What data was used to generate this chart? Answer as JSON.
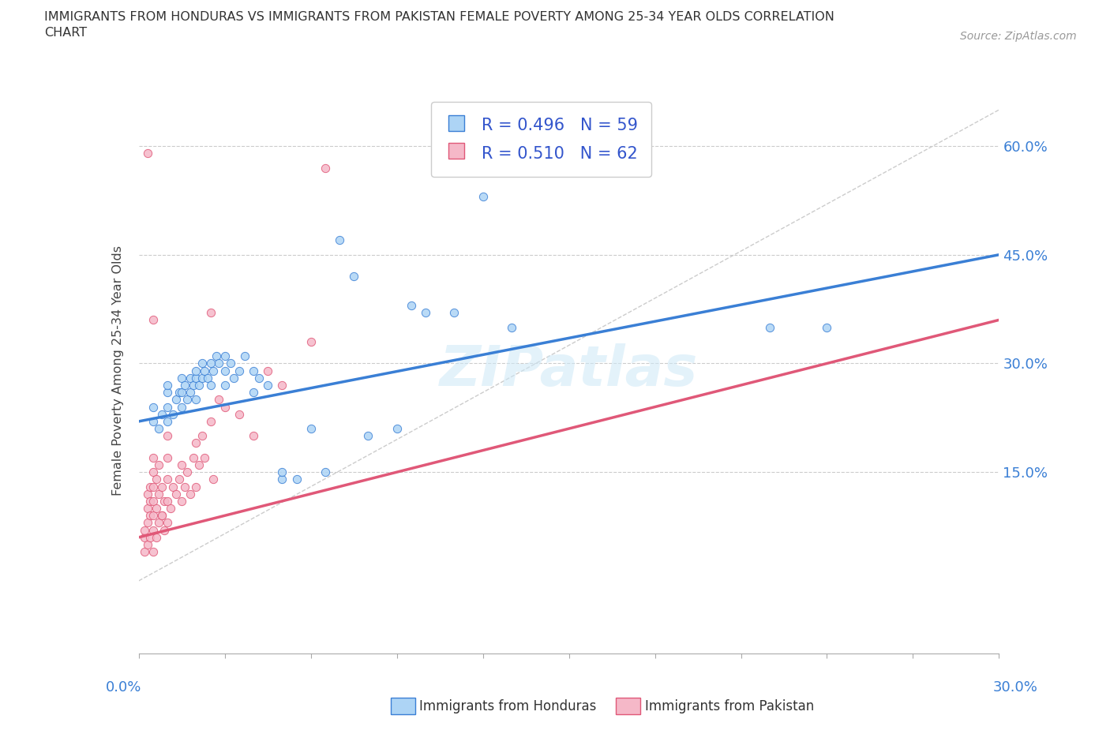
{
  "title_line1": "IMMIGRANTS FROM HONDURAS VS IMMIGRANTS FROM PAKISTAN FEMALE POVERTY AMONG 25-34 YEAR OLDS CORRELATION",
  "title_line2": "CHART",
  "source": "Source: ZipAtlas.com",
  "ylabel": "Female Poverty Among 25-34 Year Olds",
  "yticks": [
    0.15,
    0.3,
    0.45,
    0.6
  ],
  "ytick_labels": [
    "15.0%",
    "30.0%",
    "45.0%",
    "60.0%"
  ],
  "xmin": 0.0,
  "xmax": 0.3,
  "ymin": -0.1,
  "ymax": 0.68,
  "honduras_color": "#add4f5",
  "pakistan_color": "#f5b8c8",
  "honduras_line_color": "#3a7fd5",
  "pakistan_line_color": "#e05878",
  "R_honduras": 0.496,
  "N_honduras": 59,
  "R_pakistan": 0.51,
  "N_pakistan": 62,
  "legend_text_color": "#3355cc",
  "watermark": "ZIPatlas",
  "honduras_scatter": [
    [
      0.005,
      0.22
    ],
    [
      0.005,
      0.24
    ],
    [
      0.007,
      0.21
    ],
    [
      0.008,
      0.23
    ],
    [
      0.01,
      0.22
    ],
    [
      0.01,
      0.24
    ],
    [
      0.01,
      0.26
    ],
    [
      0.01,
      0.27
    ],
    [
      0.012,
      0.23
    ],
    [
      0.013,
      0.25
    ],
    [
      0.014,
      0.26
    ],
    [
      0.015,
      0.24
    ],
    [
      0.015,
      0.26
    ],
    [
      0.015,
      0.28
    ],
    [
      0.016,
      0.27
    ],
    [
      0.017,
      0.25
    ],
    [
      0.018,
      0.26
    ],
    [
      0.018,
      0.28
    ],
    [
      0.019,
      0.27
    ],
    [
      0.02,
      0.25
    ],
    [
      0.02,
      0.28
    ],
    [
      0.02,
      0.29
    ],
    [
      0.021,
      0.27
    ],
    [
      0.022,
      0.28
    ],
    [
      0.022,
      0.3
    ],
    [
      0.023,
      0.29
    ],
    [
      0.024,
      0.28
    ],
    [
      0.025,
      0.27
    ],
    [
      0.025,
      0.3
    ],
    [
      0.026,
      0.29
    ],
    [
      0.027,
      0.31
    ],
    [
      0.028,
      0.3
    ],
    [
      0.03,
      0.27
    ],
    [
      0.03,
      0.29
    ],
    [
      0.03,
      0.31
    ],
    [
      0.032,
      0.3
    ],
    [
      0.033,
      0.28
    ],
    [
      0.035,
      0.29
    ],
    [
      0.037,
      0.31
    ],
    [
      0.04,
      0.26
    ],
    [
      0.04,
      0.29
    ],
    [
      0.042,
      0.28
    ],
    [
      0.045,
      0.27
    ],
    [
      0.05,
      0.14
    ],
    [
      0.05,
      0.15
    ],
    [
      0.055,
      0.14
    ],
    [
      0.06,
      0.21
    ],
    [
      0.065,
      0.15
    ],
    [
      0.07,
      0.47
    ],
    [
      0.075,
      0.42
    ],
    [
      0.08,
      0.2
    ],
    [
      0.09,
      0.21
    ],
    [
      0.095,
      0.38
    ],
    [
      0.1,
      0.37
    ],
    [
      0.11,
      0.37
    ],
    [
      0.13,
      0.35
    ],
    [
      0.22,
      0.35
    ],
    [
      0.24,
      0.35
    ],
    [
      0.12,
      0.53
    ]
  ],
  "pakistan_scatter": [
    [
      0.002,
      0.04
    ],
    [
      0.002,
      0.06
    ],
    [
      0.002,
      0.07
    ],
    [
      0.003,
      0.05
    ],
    [
      0.003,
      0.08
    ],
    [
      0.003,
      0.1
    ],
    [
      0.003,
      0.12
    ],
    [
      0.004,
      0.06
    ],
    [
      0.004,
      0.09
    ],
    [
      0.004,
      0.11
    ],
    [
      0.004,
      0.13
    ],
    [
      0.005,
      0.04
    ],
    [
      0.005,
      0.07
    ],
    [
      0.005,
      0.09
    ],
    [
      0.005,
      0.11
    ],
    [
      0.005,
      0.13
    ],
    [
      0.005,
      0.15
    ],
    [
      0.005,
      0.17
    ],
    [
      0.005,
      0.36
    ],
    [
      0.006,
      0.06
    ],
    [
      0.006,
      0.1
    ],
    [
      0.006,
      0.14
    ],
    [
      0.007,
      0.08
    ],
    [
      0.007,
      0.12
    ],
    [
      0.007,
      0.16
    ],
    [
      0.008,
      0.09
    ],
    [
      0.008,
      0.13
    ],
    [
      0.009,
      0.07
    ],
    [
      0.009,
      0.11
    ],
    [
      0.01,
      0.08
    ],
    [
      0.01,
      0.11
    ],
    [
      0.01,
      0.14
    ],
    [
      0.01,
      0.17
    ],
    [
      0.01,
      0.2
    ],
    [
      0.011,
      0.1
    ],
    [
      0.012,
      0.13
    ],
    [
      0.013,
      0.12
    ],
    [
      0.014,
      0.14
    ],
    [
      0.015,
      0.11
    ],
    [
      0.015,
      0.16
    ],
    [
      0.016,
      0.13
    ],
    [
      0.017,
      0.15
    ],
    [
      0.018,
      0.12
    ],
    [
      0.019,
      0.17
    ],
    [
      0.02,
      0.13
    ],
    [
      0.02,
      0.19
    ],
    [
      0.021,
      0.16
    ],
    [
      0.022,
      0.2
    ],
    [
      0.023,
      0.17
    ],
    [
      0.025,
      0.22
    ],
    [
      0.026,
      0.14
    ],
    [
      0.028,
      0.25
    ],
    [
      0.03,
      0.24
    ],
    [
      0.035,
      0.23
    ],
    [
      0.04,
      0.2
    ],
    [
      0.045,
      0.29
    ],
    [
      0.05,
      0.27
    ],
    [
      0.06,
      0.33
    ],
    [
      0.065,
      0.57
    ],
    [
      0.003,
      0.59
    ],
    [
      0.025,
      0.37
    ],
    [
      0.008,
      0.09
    ]
  ],
  "ref_line": [
    [
      0.0,
      0.0
    ],
    [
      0.3,
      0.65
    ]
  ],
  "honduras_reg": [
    0.0,
    0.22,
    0.3,
    0.45
  ],
  "pakistan_reg": [
    0.0,
    0.06,
    0.3,
    0.36
  ]
}
